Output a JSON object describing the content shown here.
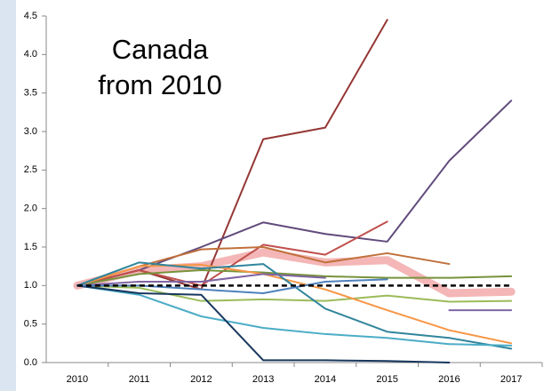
{
  "chart_data": {
    "type": "line",
    "annotations": [
      "Canada",
      "from 2010"
    ],
    "categories": [
      "2010",
      "2011",
      "2012",
      "2013",
      "2014",
      "2015",
      "2016",
      "2017"
    ],
    "ylim": [
      0,
      4.5
    ],
    "yticks": [
      {
        "value": 0,
        "label": "0.0"
      },
      0.5,
      {
        "value": 1,
        "label": "1.0"
      },
      1.5,
      {
        "value": 2,
        "label": "2.0"
      },
      2.5,
      {
        "value": 3,
        "label": "3.0"
      },
      3.5,
      {
        "value": 4,
        "label": "4.0"
      },
      4.5
    ],
    "grid": false,
    "series": [
      {
        "color": "#f4b6b6",
        "emphasis": true,
        "values": [
          1.0,
          1.2,
          1.25,
          1.43,
          1.3,
          1.33,
          0.9,
          0.92
        ]
      },
      {
        "color": "#953735",
        "values": [
          1.0,
          1.2,
          0.95,
          2.9,
          3.05,
          4.45,
          null,
          null
        ]
      },
      {
        "color": "#604a7b",
        "values": [
          1.0,
          1.2,
          1.5,
          1.82,
          1.67,
          1.57,
          2.62,
          3.4
        ]
      },
      {
        "color": "#c0504d",
        "values": [
          1.0,
          1.2,
          1.0,
          1.53,
          1.4,
          1.83,
          null,
          null
        ]
      },
      {
        "color": "#c0703a",
        "values": [
          1.0,
          1.25,
          1.47,
          1.5,
          1.3,
          1.42,
          1.28,
          null
        ]
      },
      {
        "color": "#77933c",
        "values": [
          1.0,
          1.15,
          1.2,
          1.17,
          1.12,
          1.1,
          1.1,
          1.12
        ]
      },
      {
        "color": "#9bbb59",
        "values": [
          1.0,
          0.97,
          0.8,
          0.82,
          0.8,
          0.87,
          0.79,
          0.8
        ]
      },
      {
        "color": "#f79646",
        "values": [
          1.0,
          1.25,
          1.27,
          1.15,
          0.95,
          0.68,
          0.42,
          0.25
        ]
      },
      {
        "color": "#31859c",
        "values": [
          1.0,
          1.3,
          1.22,
          1.28,
          0.7,
          0.4,
          0.32,
          0.18
        ]
      },
      {
        "color": "#4bacc6",
        "values": [
          1.0,
          0.88,
          0.6,
          0.45,
          0.37,
          0.32,
          0.24,
          0.22
        ]
      },
      {
        "color": "#17375e",
        "values": [
          1.0,
          0.9,
          0.88,
          0.03,
          0.03,
          0.02,
          0.0,
          null
        ]
      },
      {
        "color": "#8064a2",
        "values": [
          1.0,
          1.05,
          1.05,
          1.15,
          1.1,
          null,
          0.68,
          0.68
        ]
      },
      {
        "color": "#4f81bd",
        "values": [
          1.0,
          1.0,
          0.95,
          0.9,
          1.05,
          1.08,
          null,
          null
        ]
      },
      {
        "color": "#000000",
        "linestyle": "dashed",
        "values": [
          1.0,
          1.0,
          1.0,
          1.0,
          1.0,
          1.0,
          1.0,
          1.0
        ]
      }
    ]
  }
}
